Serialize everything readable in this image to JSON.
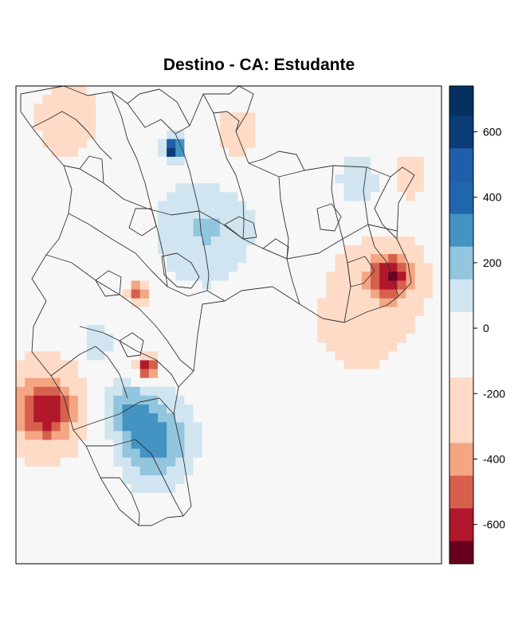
{
  "chart_data": {
    "type": "heatmap",
    "title": "Destino - CA: Estudante",
    "xlabel": "",
    "ylabel": "",
    "grid": false,
    "legend": "right",
    "colorbar": {
      "range": [
        -720,
        740
      ],
      "breaks": [
        -720,
        -650,
        -550,
        -450,
        -350,
        -250,
        -150,
        -50,
        50,
        150,
        250,
        350,
        450,
        550,
        650,
        740
      ],
      "colors": [
        "#67001F",
        "#B2182B",
        "#D6604D",
        "#F4A582",
        "#FDDBC7",
        "#FDDBC7",
        "#F7F7F7",
        "#F7F7F7",
        "#D1E5F0",
        "#92C5DE",
        "#4393C3",
        "#2166AC",
        "#1F5EA8",
        "#0B3C78",
        "#053061"
      ],
      "ticks": [
        600,
        400,
        200,
        0,
        -200,
        -400,
        -600
      ],
      "tick_labels": [
        "600",
        "400",
        "200",
        "0",
        "-200",
        "-400",
        "-600"
      ]
    },
    "grid_size": {
      "cols": 48,
      "rows": 54
    },
    "background_value": 0,
    "hotspots": [
      {
        "name": "south-west-negative",
        "x": 0.07,
        "y": 0.68,
        "value": -470,
        "spread": 0.055
      },
      {
        "name": "south-west-halo",
        "x": 0.06,
        "y": 0.66,
        "value": -180,
        "spread": 0.12
      },
      {
        "name": "east-negative",
        "x": 0.88,
        "y": 0.4,
        "value": -460,
        "spread": 0.04
      },
      {
        "name": "east-halo",
        "x": 0.86,
        "y": 0.4,
        "value": -150,
        "spread": 0.12
      },
      {
        "name": "north-west-negative",
        "x": 0.12,
        "y": 0.07,
        "value": -230,
        "spread": 0.08
      },
      {
        "name": "north-center-negative",
        "x": 0.52,
        "y": 0.1,
        "value": -220,
        "spread": 0.06
      },
      {
        "name": "north-east-negative",
        "x": 0.92,
        "y": 0.18,
        "value": -200,
        "spread": 0.05
      },
      {
        "name": "central-south-min",
        "x": 0.31,
        "y": 0.59,
        "value": -700,
        "spread": 0.018
      },
      {
        "name": "central-min",
        "x": 0.29,
        "y": 0.43,
        "value": -520,
        "spread": 0.02
      },
      {
        "name": "east-south-halo",
        "x": 0.78,
        "y": 0.55,
        "value": -120,
        "spread": 0.14
      },
      {
        "name": "south-positive",
        "x": 0.32,
        "y": 0.74,
        "value": 330,
        "spread": 0.06
      },
      {
        "name": "south-positive-2",
        "x": 0.25,
        "y": 0.67,
        "value": 230,
        "spread": 0.04
      },
      {
        "name": "north-max",
        "x": 0.37,
        "y": 0.13,
        "value": 700,
        "spread": 0.015
      },
      {
        "name": "west-positive",
        "x": 0.19,
        "y": 0.54,
        "value": 220,
        "spread": 0.03
      },
      {
        "name": "east-north-positive",
        "x": 0.82,
        "y": 0.21,
        "value": 180,
        "spread": 0.05
      },
      {
        "name": "center-positive",
        "x": 0.45,
        "y": 0.3,
        "value": 160,
        "spread": 0.08
      }
    ]
  }
}
